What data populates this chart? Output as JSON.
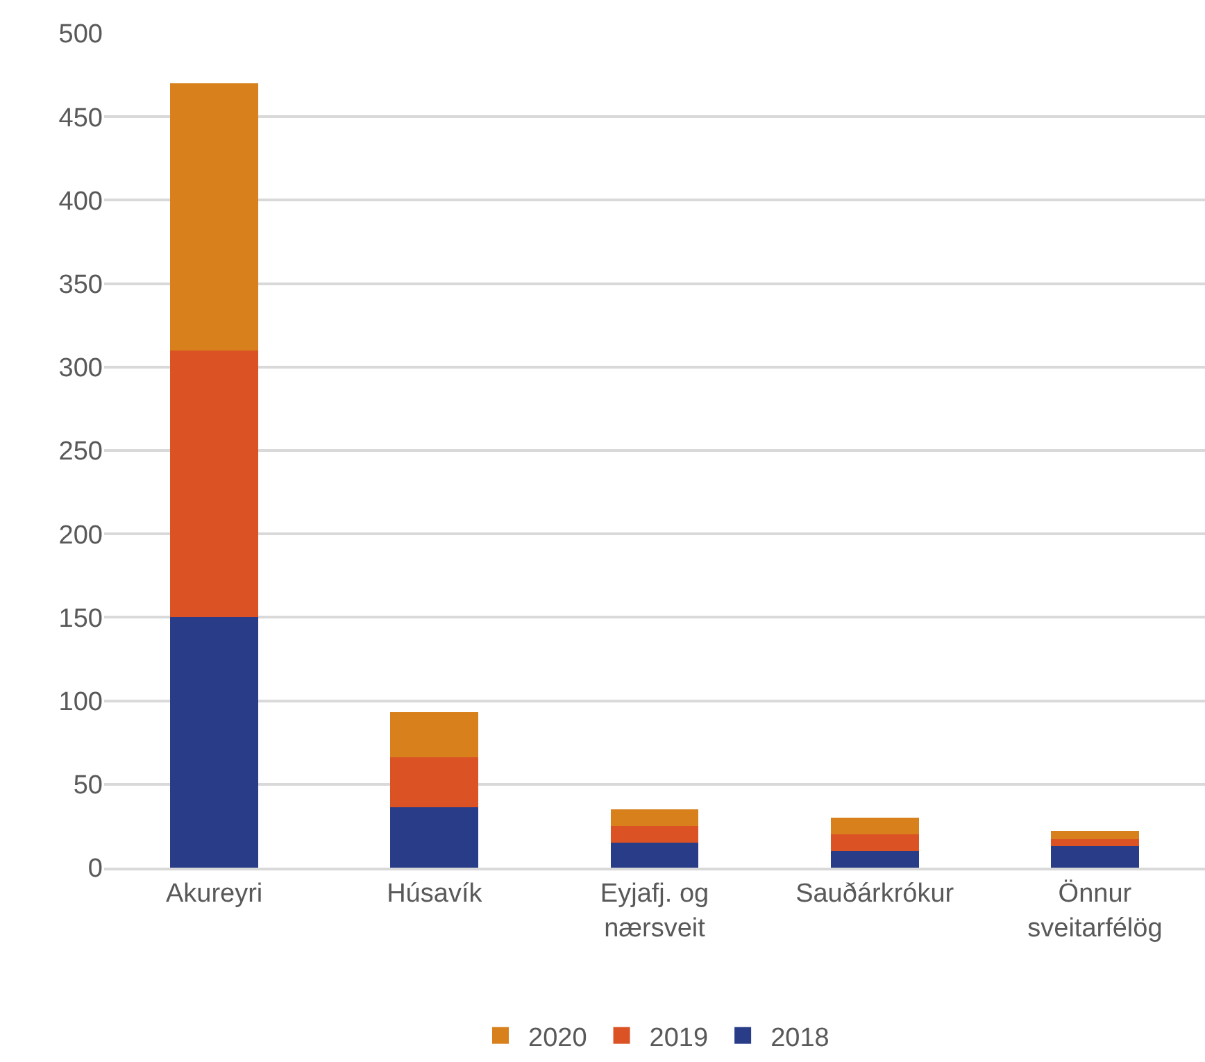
{
  "chart_data": {
    "type": "bar",
    "stacked": true,
    "categories": [
      "Akureyri",
      "Húsavík",
      "Eyjafj. og nærsveit",
      "Sauðárkrókur",
      "Önnur sveitarfélög"
    ],
    "series": [
      {
        "name": "2018",
        "color": "#283c87",
        "values": [
          150,
          36,
          15,
          10,
          13
        ]
      },
      {
        "name": "2019",
        "color": "#db5224",
        "values": [
          160,
          30,
          10,
          10,
          4
        ]
      },
      {
        "name": "2020",
        "color": "#d8801c",
        "values": [
          160,
          27,
          10,
          10,
          5
        ]
      }
    ],
    "ylim": [
      0,
      500
    ],
    "yticks": [
      0,
      50,
      100,
      150,
      200,
      250,
      300,
      350,
      400,
      450,
      500
    ],
    "grid": "y",
    "legend": "bottom"
  }
}
